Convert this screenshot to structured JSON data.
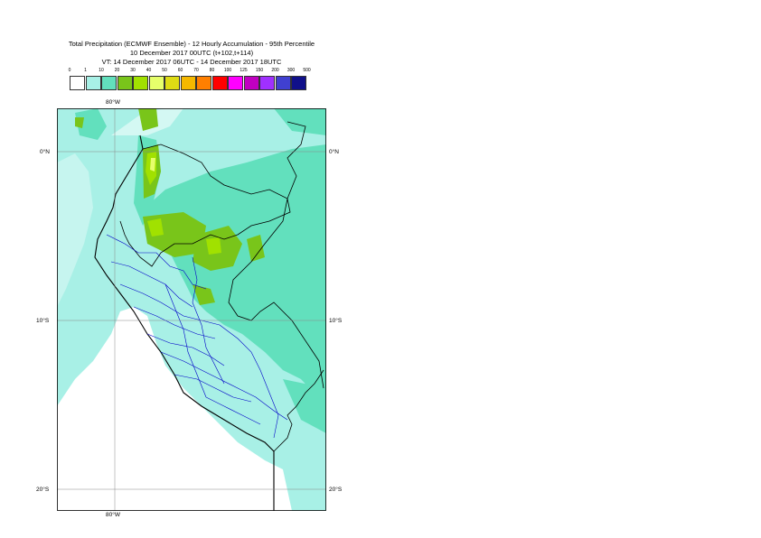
{
  "title": {
    "line1": "Total Precipitation (ECMWF Ensemble) - 12 Hourly Accumulation - 95th Percentile",
    "line2": "10 December 2017 00UTC (t+102,t+114)",
    "line3": "VT: 14 December 2017 06UTC - 14 December 2017 18UTC"
  },
  "colorbar": {
    "labels": [
      "0",
      "1",
      "10",
      "20",
      "30",
      "40",
      "50",
      "60",
      "70",
      "80",
      "100",
      "125",
      "150",
      "200",
      "300",
      "500"
    ],
    "colors": [
      "#ffffff",
      "#a8f0e6",
      "#62e0bd",
      "#79c51a",
      "#a1e100",
      "#e6ff6b",
      "#dedc14",
      "#f5b800",
      "#ff7f00",
      "#ff0000",
      "#ff00ff",
      "#c000c0",
      "#a030ff",
      "#4040d0",
      "#10108a"
    ]
  },
  "geo_labels": {
    "lon_top": "80°W",
    "lon_bottom": "80°W",
    "lat_0_left": "0°N",
    "lat_0_right": "0°N",
    "lat_10_left": "10°S",
    "lat_10_right": "10°S",
    "lat_20_left": "20°S",
    "lat_20_right": "20°S"
  },
  "map_colors": {
    "ocean_light": "#a8f0e6",
    "land_medium": "#62e0bd",
    "heavy": "#79c51a",
    "heavier": "#a1e100",
    "peak": "#e6ff6b",
    "coast": "#000000",
    "admin": "#0000c8"
  }
}
